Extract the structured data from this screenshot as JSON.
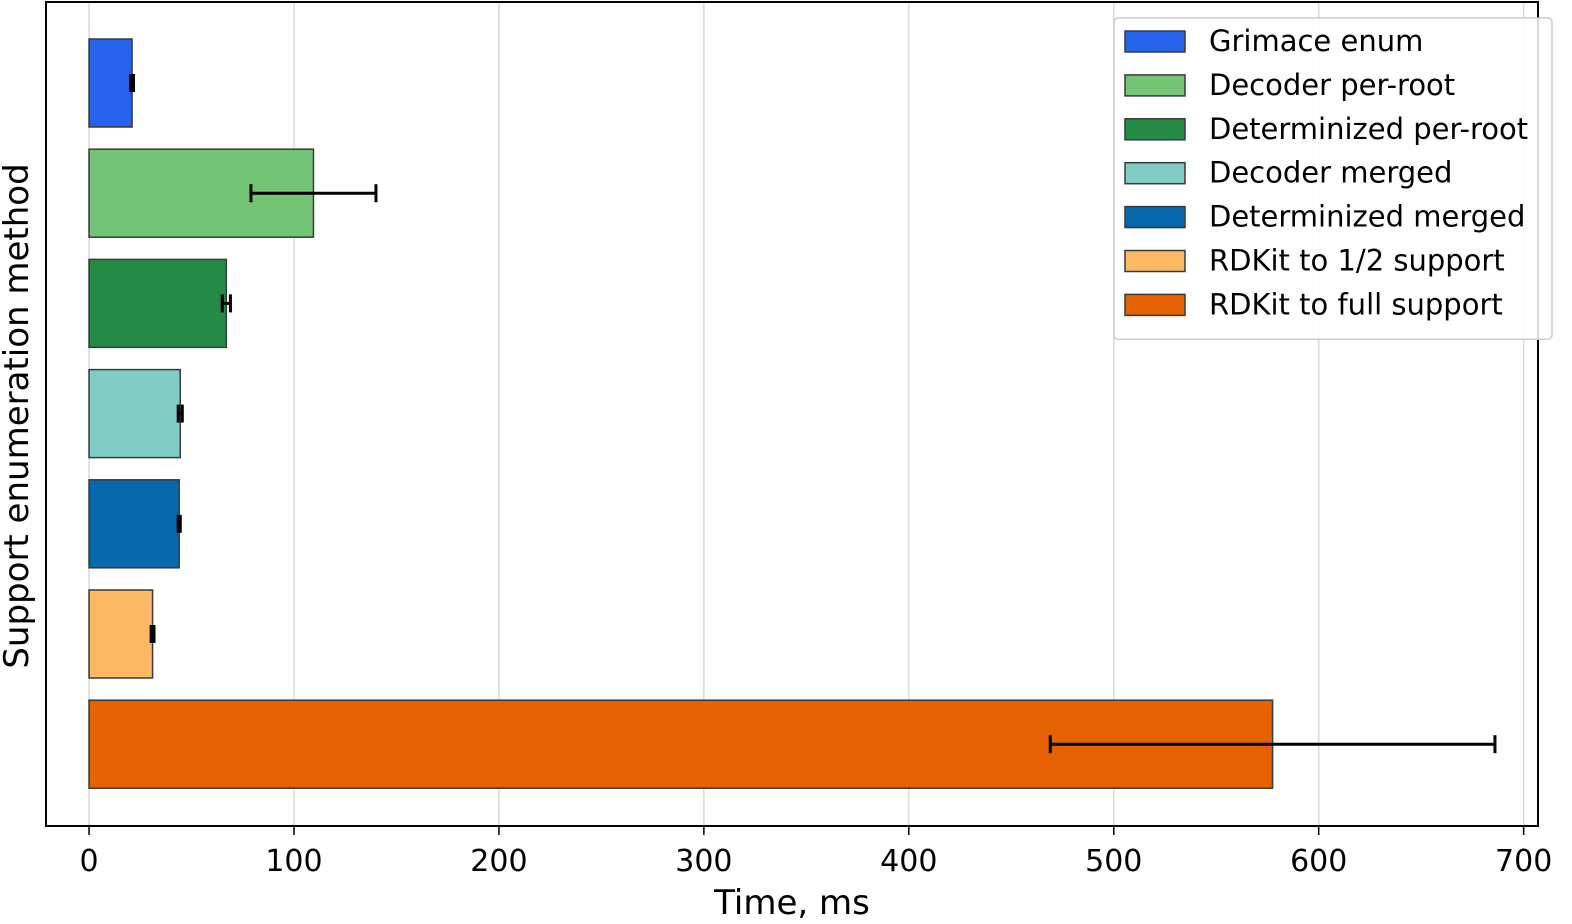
{
  "chart_data": {
    "type": "bar",
    "orientation": "horizontal",
    "xlabel": "Time, ms",
    "ylabel": "Support enumeration method",
    "xlim": [
      -21,
      707
    ],
    "xticks": [
      0,
      100,
      200,
      300,
      400,
      500,
      600,
      700
    ],
    "grid": true,
    "legend_position": "top-right",
    "series": [
      {
        "name": "Grimace enum",
        "value": 21,
        "error": 0.7,
        "color": "#2563EB"
      },
      {
        "name": "Decoder per-root",
        "value": 109.5,
        "error": 30.5,
        "color": "#74C476"
      },
      {
        "name": "Determinized per-root",
        "value": 67,
        "error": 2,
        "color": "#238B45"
      },
      {
        "name": "Decoder merged",
        "value": 44.5,
        "error": 1,
        "color": "#7FCDC4"
      },
      {
        "name": "Determinized merged",
        "value": 44,
        "error": 0.5,
        "color": "#0868AC"
      },
      {
        "name": "RDKit to 1/2 support",
        "value": 31,
        "error": 0.7,
        "color": "#FDB863"
      },
      {
        "name": "RDKit to full support",
        "value": 577.5,
        "error": 108.5,
        "color": "#E66101"
      }
    ]
  }
}
